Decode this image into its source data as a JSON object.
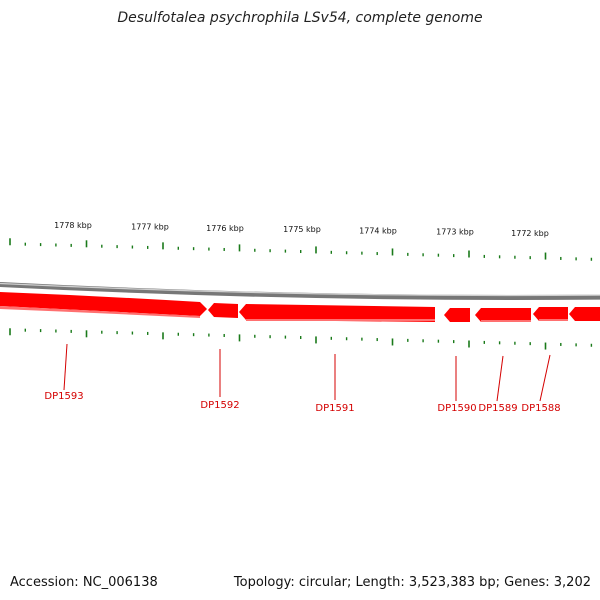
{
  "title": "Desulfotalea psychrophila LSv54, complete genome",
  "footer": {
    "accession": "Accession: NC_006138",
    "summary": "Topology: circular; Length: 3,523,383 bp; Genes: 3,202"
  },
  "colors": {
    "gene": "#ff0000",
    "gene_highlight": "#ff7070",
    "ticks": "#1a7a1a",
    "backbone": "#888888",
    "label": "#d40000"
  },
  "scale_labels": [
    "1778 kbp",
    "1777 kbp",
    "1776 kbp",
    "1775 kbp",
    "1774 kbp",
    "1773 kbp",
    "1772 kbp"
  ],
  "gene_labels": [
    "DP1593",
    "DP1592",
    "DP1591",
    "DP1590",
    "DP1589",
    "DP1588"
  ]
}
